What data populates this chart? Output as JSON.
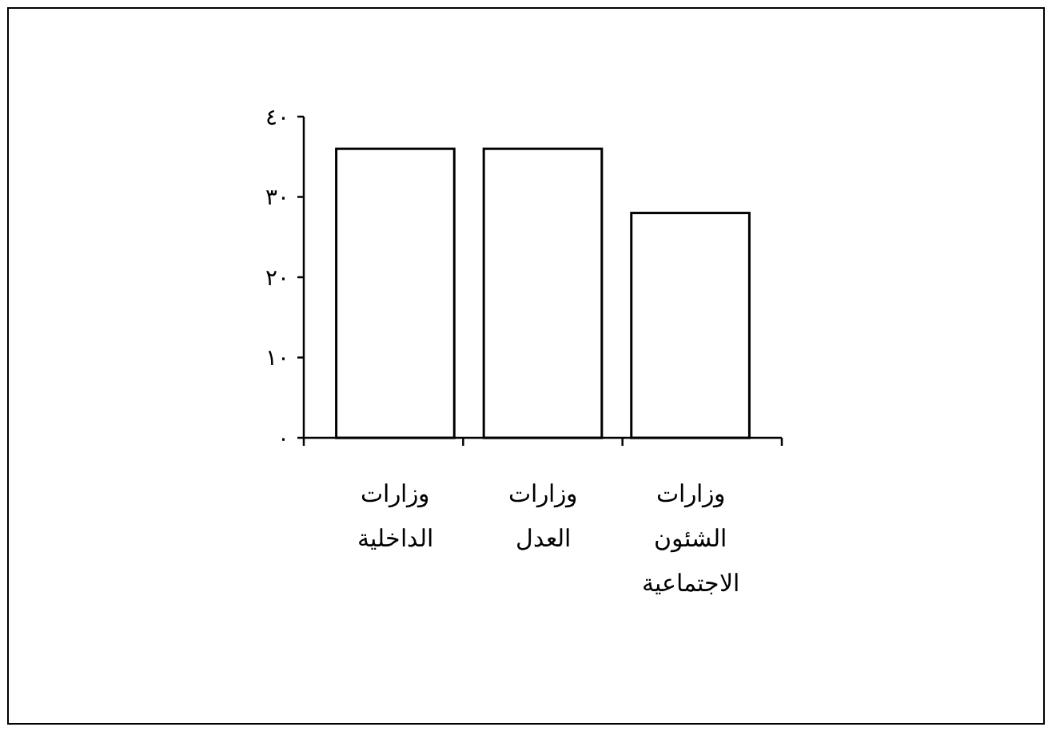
{
  "chart_data": {
    "type": "bar",
    "categories": [
      "وزارات الداخلية",
      "وزارات العدل",
      "وزارات الشئون الاجتماعية"
    ],
    "values": [
      36,
      36,
      28
    ],
    "color": "#ffffff",
    "ylim": [
      0,
      40
    ],
    "yticks": [
      {
        "value": 0,
        "label": "٠"
      },
      {
        "value": 10,
        "label": "١٠"
      },
      {
        "value": 20,
        "label": "٢٠"
      },
      {
        "value": 30,
        "label": "٣٠"
      },
      {
        "value": 40,
        "label": "٤٠"
      }
    ],
    "grid": false
  }
}
